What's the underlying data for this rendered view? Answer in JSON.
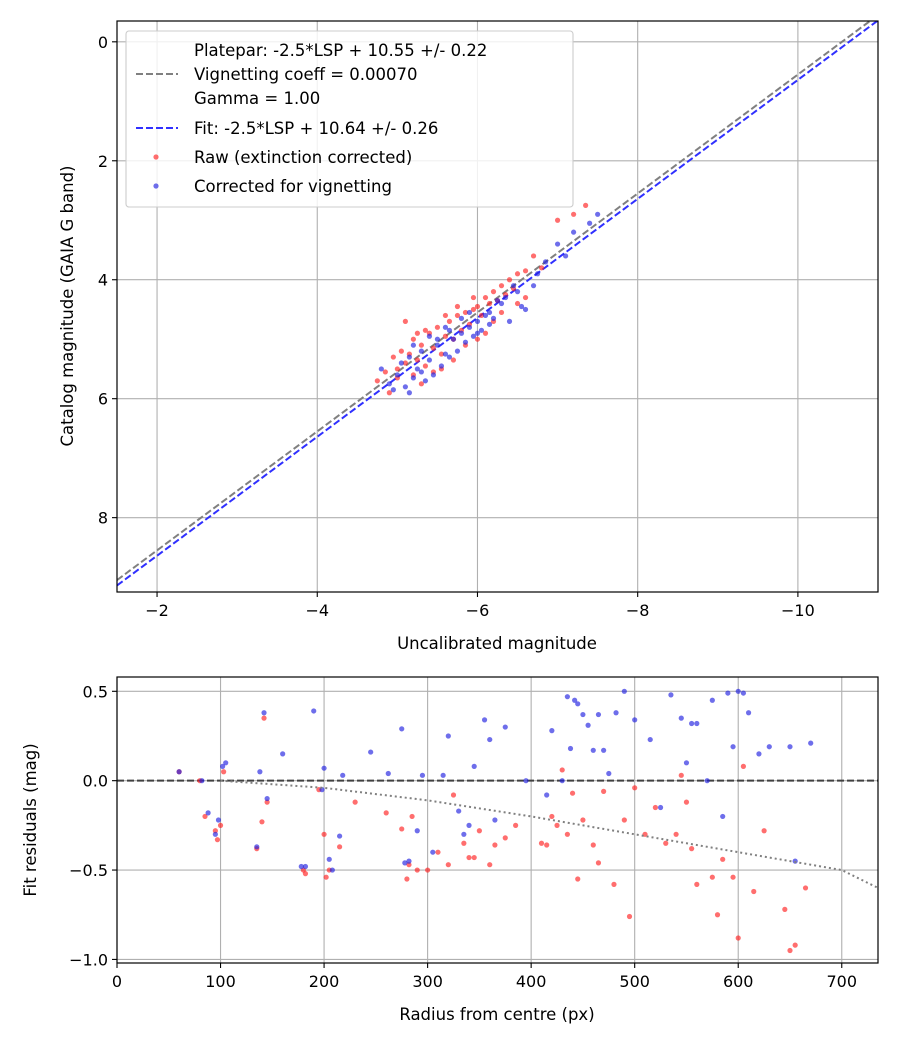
{
  "chart_data": [
    {
      "type": "line+scatter",
      "xlabel": "Uncalibrated magnitude",
      "ylabel": "Catalog magnitude (GAIA G band)",
      "xlim": [
        -1.5,
        -11.0
      ],
      "ylim": [
        9.25,
        -0.35
      ],
      "x_inverted": true,
      "y_inverted": true,
      "grid": true,
      "legend_position": "upper-left",
      "xticks": [
        -2,
        -4,
        -6,
        -8,
        -10
      ],
      "yticks": [
        0,
        2,
        4,
        6,
        8
      ],
      "xtick_labels": [
        "−2",
        "−4",
        "−6",
        "−8",
        "−10"
      ],
      "ytick_labels": [
        "0",
        "2",
        "4",
        "6",
        "8"
      ],
      "colors": {
        "platepar": "#808080",
        "fit": "#3030ff",
        "raw": "#ff2020",
        "corrected": "#2020e0"
      },
      "legend": {
        "platepar_line1": "Platepar: -2.5*LSP + 10.55 +/- 0.22",
        "platepar_line2": "Vignetting coeff = 0.00070",
        "platepar_line3": "Gamma = 1.00",
        "fit": "Fit: -2.5*LSP + 10.64 +/- 0.26",
        "raw": "Raw (extinction corrected)",
        "corrected": "Corrected for vignetting"
      },
      "series": [
        {
          "name": "Platepar",
          "kind": "line",
          "style": "dashed",
          "slope": 1.0,
          "intercept": 10.55
        },
        {
          "name": "Fit",
          "kind": "line",
          "style": "dashed",
          "slope": 1.0,
          "intercept": 10.64
        },
        {
          "name": "Raw (extinction corrected)",
          "kind": "scatter",
          "x": [
            -4.75,
            -4.85,
            -4.95,
            -5.0,
            -5.05,
            -5.1,
            -5.15,
            -5.2,
            -5.25,
            -5.3,
            -5.35,
            -5.4,
            -5.45,
            -5.5,
            -5.55,
            -5.6,
            -5.65,
            -5.7,
            -5.75,
            -5.8,
            -5.85,
            -5.9,
            -5.95,
            -6.0,
            -6.05,
            -6.1,
            -6.15,
            -6.2,
            -6.25,
            -6.3,
            -6.35,
            -6.4,
            -6.45,
            -6.5,
            -6.6,
            -6.7,
            -6.8,
            -7.0,
            -7.2,
            -7.35,
            -4.9,
            -5.0,
            -5.2,
            -5.3,
            -5.45,
            -5.55,
            -5.7,
            -5.85,
            -6.0,
            -6.1,
            -6.2,
            -6.3,
            -6.5,
            -6.6,
            -5.1,
            -5.25,
            -5.35,
            -5.6,
            -5.75,
            -5.95
          ],
          "y": [
            5.7,
            5.55,
            5.3,
            5.5,
            5.2,
            5.4,
            5.25,
            5.0,
            5.35,
            5.1,
            5.45,
            4.9,
            5.15,
            4.8,
            5.25,
            4.95,
            4.7,
            5.0,
            4.6,
            4.85,
            4.55,
            4.75,
            4.5,
            4.45,
            4.6,
            4.3,
            4.4,
            4.2,
            4.35,
            4.1,
            4.25,
            4.0,
            4.15,
            3.9,
            3.85,
            3.6,
            3.8,
            3.0,
            2.9,
            2.75,
            5.9,
            5.65,
            5.6,
            5.75,
            5.55,
            5.5,
            5.35,
            5.1,
            5.0,
            4.9,
            4.7,
            4.55,
            4.4,
            4.3,
            4.7,
            4.9,
            4.85,
            4.6,
            4.45,
            4.3
          ]
        },
        {
          "name": "Corrected for vignetting",
          "kind": "scatter",
          "x": [
            -4.8,
            -4.9,
            -5.0,
            -5.05,
            -5.1,
            -5.15,
            -5.2,
            -5.25,
            -5.3,
            -5.35,
            -5.4,
            -5.45,
            -5.5,
            -5.55,
            -5.6,
            -5.65,
            -5.7,
            -5.75,
            -5.8,
            -5.85,
            -5.9,
            -5.95,
            -6.0,
            -6.05,
            -6.1,
            -6.15,
            -6.2,
            -6.3,
            -6.4,
            -6.5,
            -6.6,
            -6.7,
            -6.85,
            -7.0,
            -7.2,
            -7.4,
            -7.5,
            -4.95,
            -5.15,
            -5.3,
            -5.5,
            -5.65,
            -5.8,
            -6.0,
            -6.15,
            -6.35,
            -6.55,
            -6.75,
            -5.2,
            -5.4,
            -5.6,
            -5.9,
            -6.25,
            -6.45,
            -7.1
          ],
          "y": [
            5.5,
            5.75,
            5.6,
            5.4,
            5.8,
            5.3,
            5.65,
            5.5,
            5.2,
            5.7,
            5.35,
            5.6,
            5.1,
            5.45,
            5.25,
            5.3,
            5.0,
            5.2,
            4.9,
            5.05,
            4.8,
            4.95,
            4.7,
            4.85,
            4.6,
            4.55,
            4.65,
            4.4,
            4.7,
            4.2,
            4.5,
            4.1,
            3.7,
            3.4,
            3.2,
            3.05,
            2.9,
            5.85,
            5.9,
            5.55,
            5.0,
            4.85,
            4.65,
            4.9,
            4.75,
            4.3,
            4.45,
            3.9,
            5.1,
            4.95,
            4.8,
            4.55,
            4.35,
            4.1,
            3.6
          ]
        }
      ]
    },
    {
      "type": "scatter",
      "xlabel": "Radius from centre (px)",
      "ylabel": "Fit residuals (mag)",
      "xlim": [
        0,
        735
      ],
      "ylim": [
        -1.02,
        0.58
      ],
      "grid": true,
      "xticks": [
        0,
        100,
        200,
        300,
        400,
        500,
        600,
        700
      ],
      "yticks": [
        0.5,
        0.0,
        -0.5,
        -1.0
      ],
      "xtick_labels": [
        "0",
        "100",
        "200",
        "300",
        "400",
        "500",
        "600",
        "700"
      ],
      "ytick_labels": [
        "0.5",
        "0.0",
        "−0.5",
        "−1.0"
      ],
      "series": [
        {
          "name": "Zero line",
          "kind": "hline",
          "style": "dashed",
          "y": 0.0
        },
        {
          "name": "Vignetting model",
          "kind": "line",
          "style": "dotted",
          "x": [
            100,
            200,
            300,
            400,
            500,
            600,
            700,
            735
          ],
          "y": [
            0.0,
            -0.04,
            -0.11,
            -0.2,
            -0.3,
            -0.4,
            -0.5,
            -0.6
          ]
        },
        {
          "name": "Raw (extinction corrected)",
          "kind": "scatter",
          "x": [
            60,
            80,
            85,
            95,
            97,
            100,
            103,
            135,
            140,
            142,
            145,
            180,
            182,
            195,
            200,
            202,
            205,
            215,
            230,
            260,
            275,
            280,
            282,
            285,
            290,
            300,
            310,
            320,
            325,
            335,
            340,
            345,
            350,
            360,
            365,
            375,
            385,
            410,
            415,
            420,
            425,
            430,
            435,
            440,
            445,
            450,
            460,
            465,
            470,
            480,
            490,
            495,
            500,
            510,
            520,
            530,
            540,
            545,
            550,
            555,
            560,
            575,
            580,
            585,
            595,
            600,
            605,
            615,
            625,
            645,
            650,
            655,
            665
          ],
          "y": [
            0.05,
            0.0,
            -0.2,
            -0.28,
            -0.33,
            -0.25,
            0.05,
            -0.38,
            -0.23,
            0.35,
            -0.12,
            -0.5,
            -0.52,
            -0.05,
            -0.3,
            -0.54,
            -0.5,
            -0.37,
            -0.12,
            -0.18,
            -0.27,
            -0.55,
            -0.47,
            -0.2,
            -0.5,
            -0.5,
            -0.4,
            -0.47,
            -0.08,
            -0.35,
            -0.43,
            -0.43,
            -0.28,
            -0.47,
            -0.36,
            -0.32,
            -0.25,
            -0.35,
            -0.36,
            -0.2,
            -0.25,
            0.06,
            -0.3,
            -0.07,
            -0.55,
            -0.22,
            -0.36,
            -0.46,
            -0.06,
            -0.58,
            -0.22,
            -0.76,
            -0.04,
            -0.3,
            -0.15,
            -0.35,
            -0.3,
            0.03,
            -0.12,
            -0.38,
            -0.58,
            -0.54,
            -0.75,
            -0.44,
            -0.54,
            -0.88,
            0.08,
            -0.62,
            -0.28,
            -0.72,
            -0.95,
            -0.92,
            -0.6
          ]
        },
        {
          "name": "Corrected for vignetting",
          "kind": "scatter",
          "x": [
            60,
            82,
            88,
            95,
            98,
            102,
            105,
            135,
            138,
            142,
            145,
            160,
            178,
            182,
            190,
            198,
            200,
            205,
            208,
            215,
            218,
            245,
            262,
            275,
            278,
            282,
            290,
            295,
            305,
            315,
            320,
            330,
            335,
            340,
            345,
            355,
            360,
            365,
            375,
            395,
            415,
            420,
            430,
            435,
            438,
            442,
            445,
            450,
            455,
            460,
            465,
            470,
            475,
            482,
            490,
            500,
            515,
            525,
            535,
            545,
            550,
            555,
            560,
            570,
            575,
            585,
            590,
            595,
            600,
            605,
            610,
            620,
            630,
            650,
            655,
            670
          ],
          "y": [
            0.05,
            0.0,
            -0.18,
            -0.3,
            -0.22,
            0.08,
            0.1,
            -0.37,
            0.05,
            0.38,
            -0.1,
            0.15,
            -0.48,
            -0.48,
            0.39,
            -0.05,
            0.07,
            -0.44,
            -0.5,
            -0.31,
            0.03,
            0.16,
            0.04,
            0.29,
            -0.46,
            -0.45,
            -0.28,
            0.03,
            -0.4,
            0.03,
            0.25,
            -0.17,
            -0.3,
            -0.25,
            0.08,
            0.34,
            0.23,
            -0.22,
            0.3,
            0.0,
            -0.08,
            0.28,
            0.0,
            0.47,
            0.18,
            0.45,
            0.43,
            0.37,
            0.31,
            0.17,
            0.37,
            0.17,
            0.04,
            0.38,
            0.5,
            0.34,
            0.23,
            -0.15,
            0.48,
            0.35,
            0.1,
            0.32,
            0.32,
            0.0,
            0.45,
            -0.2,
            0.49,
            0.19,
            0.5,
            0.49,
            0.38,
            0.15,
            0.19,
            0.19,
            -0.45,
            0.21
          ]
        }
      ]
    }
  ]
}
